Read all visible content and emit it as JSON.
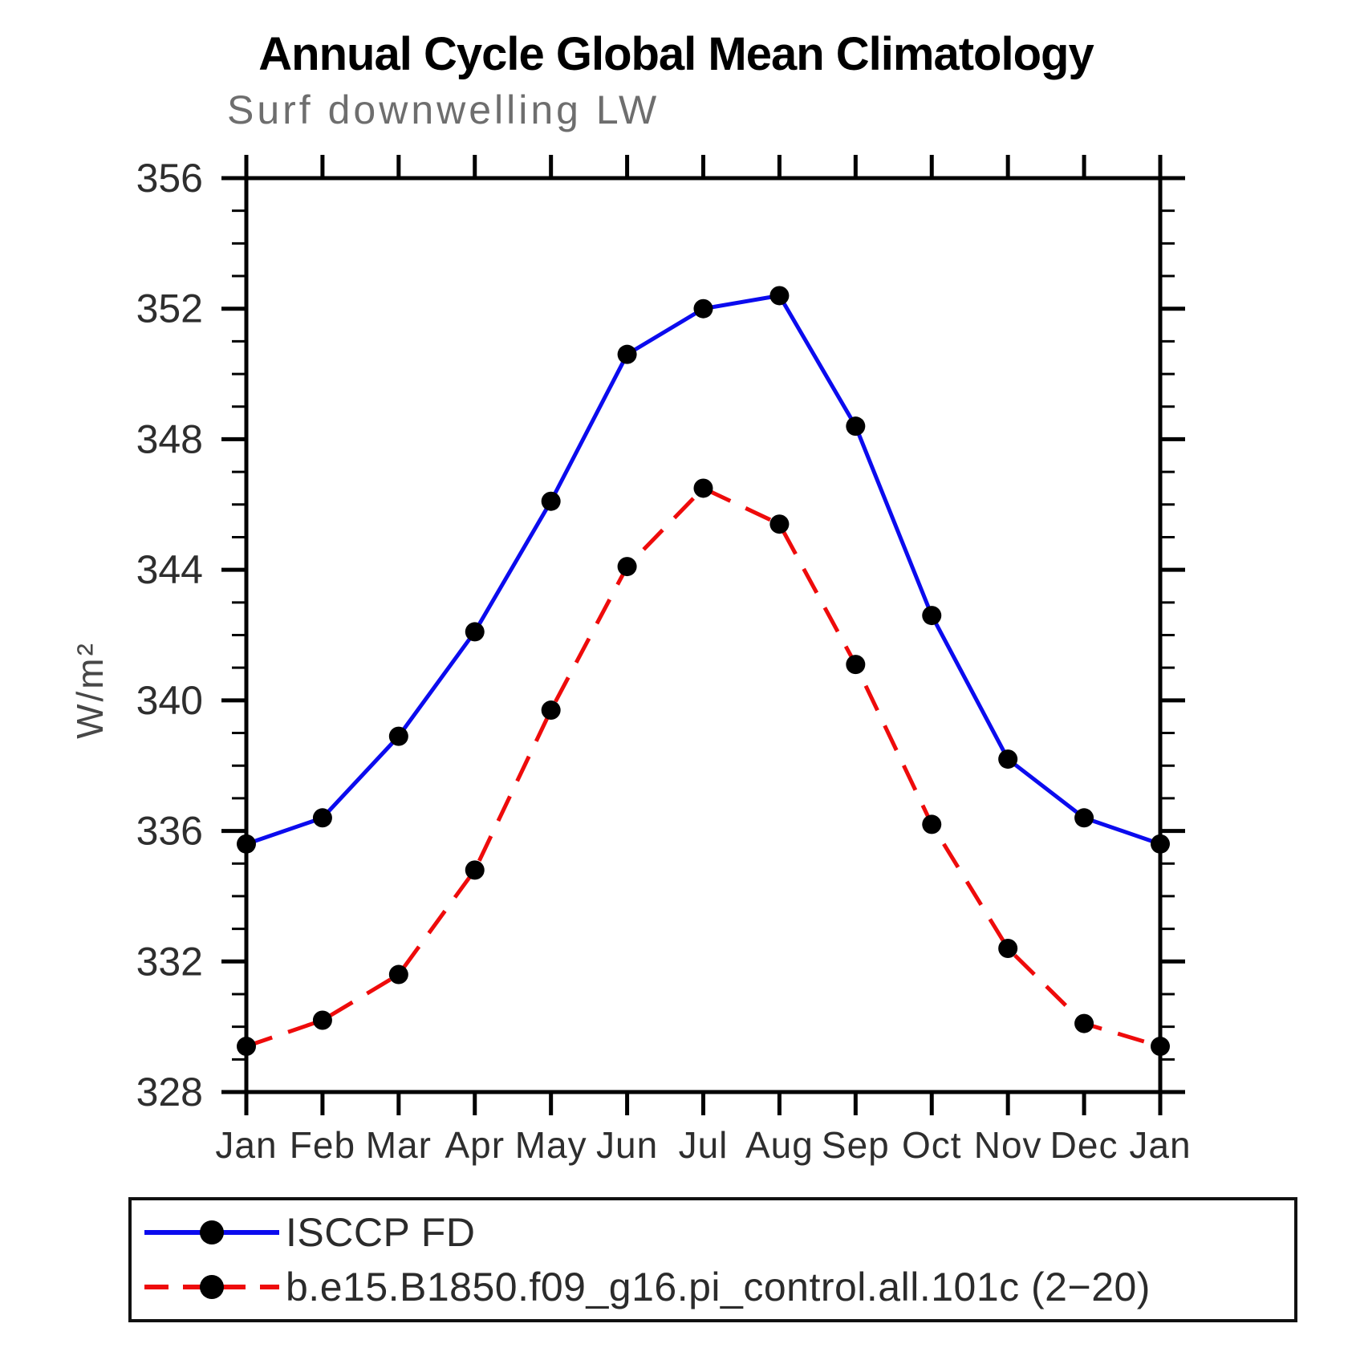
{
  "chart_data": {
    "type": "line",
    "title": "Annual Cycle Global Mean Climatology",
    "subtitle": "Surf downwelling LW",
    "ylabel": "W/m²",
    "xlabel": "",
    "categories": [
      "Jan",
      "Feb",
      "Mar",
      "Apr",
      "May",
      "Jun",
      "Jul",
      "Aug",
      "Sep",
      "Oct",
      "Nov",
      "Dec",
      "Jan"
    ],
    "ylim": [
      328,
      356
    ],
    "yticks_major": [
      328,
      332,
      336,
      340,
      344,
      348,
      352,
      356
    ],
    "ytick_minor_step": 1,
    "grid": false,
    "legend_position": "bottom",
    "axis_color": "#000000",
    "marker_color": "#000000",
    "series": [
      {
        "name": "ISCCP FD",
        "color": "#0b0bee",
        "line_style": "solid",
        "marker": "circle",
        "values": [
          335.6,
          336.4,
          338.9,
          342.1,
          346.1,
          350.6,
          352.0,
          352.4,
          348.4,
          342.6,
          338.2,
          336.4,
          335.6
        ]
      },
      {
        "name": "b.e15.B1850.f09_g16.pi_control.all.101c (2−20)",
        "color": "#ee0b0b",
        "line_style": "dashed",
        "marker": "circle",
        "values": [
          329.4,
          330.2,
          331.6,
          334.8,
          339.7,
          344.1,
          346.5,
          345.4,
          341.1,
          336.2,
          332.4,
          330.1,
          329.4
        ]
      }
    ]
  }
}
